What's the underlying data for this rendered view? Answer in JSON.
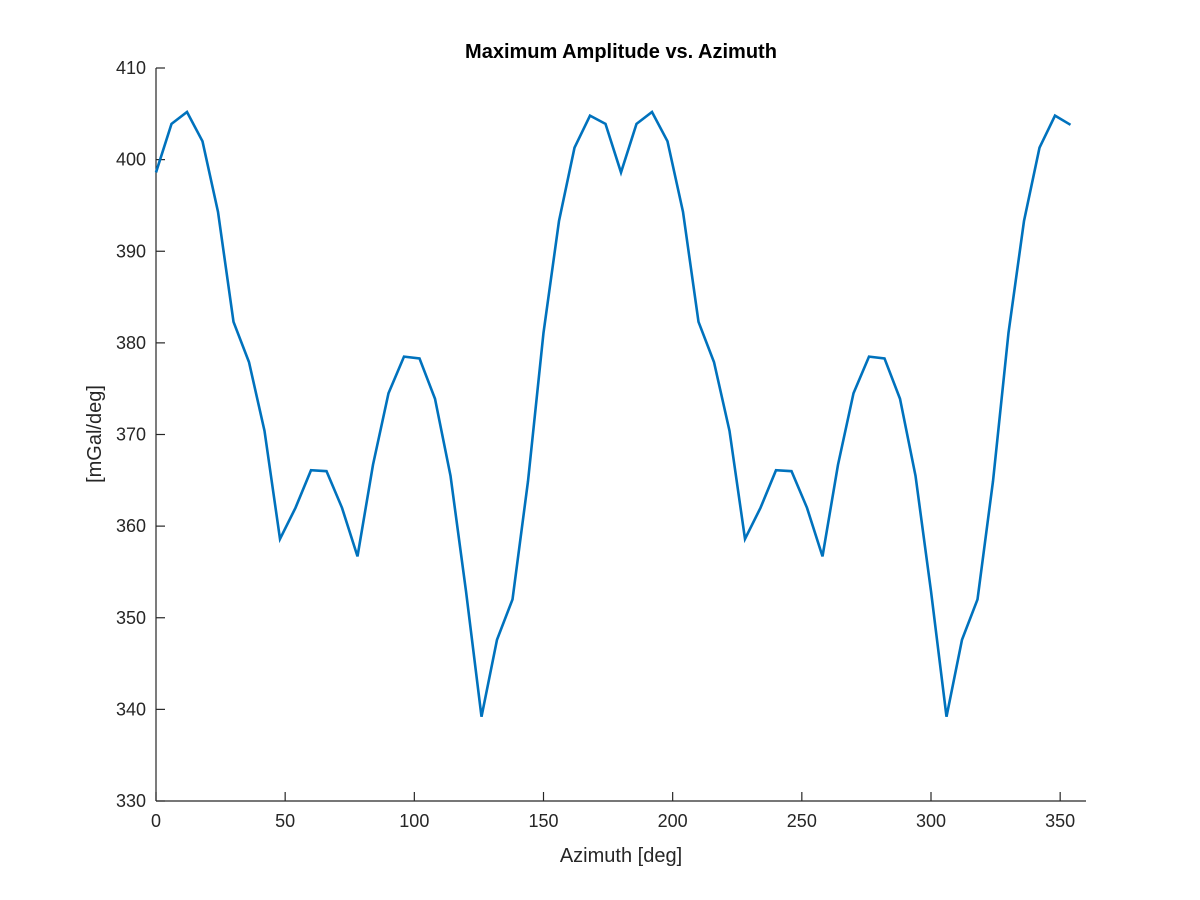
{
  "chart_data": {
    "type": "line",
    "title": "Maximum Amplitude vs. Azimuth",
    "xlabel": "Azimuth [deg]",
    "ylabel": "[mGal/deg]",
    "xlim": [
      0,
      360
    ],
    "ylim": [
      330,
      410
    ],
    "xticks": [
      0,
      50,
      100,
      150,
      200,
      250,
      300,
      350
    ],
    "yticks": [
      330,
      340,
      350,
      360,
      370,
      380,
      390,
      400,
      410
    ],
    "grid": false,
    "legend": "none",
    "series": [
      {
        "color": "#0072BD",
        "x": [
          0,
          6,
          12,
          18,
          24,
          30,
          36,
          42,
          48,
          54,
          60,
          66,
          72,
          78,
          84,
          90,
          96,
          102,
          108,
          114,
          120,
          126,
          132,
          138,
          144,
          150,
          156,
          162,
          168,
          174,
          180,
          186,
          192,
          198,
          204,
          210,
          216,
          222,
          228,
          234,
          240,
          246,
          252,
          258,
          264,
          270,
          276,
          282,
          288,
          294,
          300,
          306,
          312,
          318,
          324,
          330,
          336,
          342,
          348,
          354
        ],
        "y": [
          398.6,
          403.9,
          405.2,
          402.0,
          394.3,
          382.3,
          377.9,
          370.4,
          358.6,
          362.0,
          366.1,
          366.0,
          362.0,
          356.7,
          366.7,
          374.5,
          378.5,
          378.3,
          373.9,
          365.5,
          352.9,
          339.2,
          347.6,
          352.0,
          364.9,
          381.1,
          393.3,
          401.3,
          404.8,
          403.9,
          398.6,
          403.9,
          405.2,
          402.0,
          394.3,
          382.3,
          377.9,
          370.4,
          358.6,
          362.0,
          366.1,
          366.0,
          362.0,
          356.7,
          366.7,
          374.5,
          378.5,
          378.3,
          373.9,
          365.5,
          352.9,
          339.2,
          347.6,
          352.0,
          364.9,
          381.1,
          393.3,
          401.3,
          404.8,
          403.8
        ]
      }
    ]
  }
}
